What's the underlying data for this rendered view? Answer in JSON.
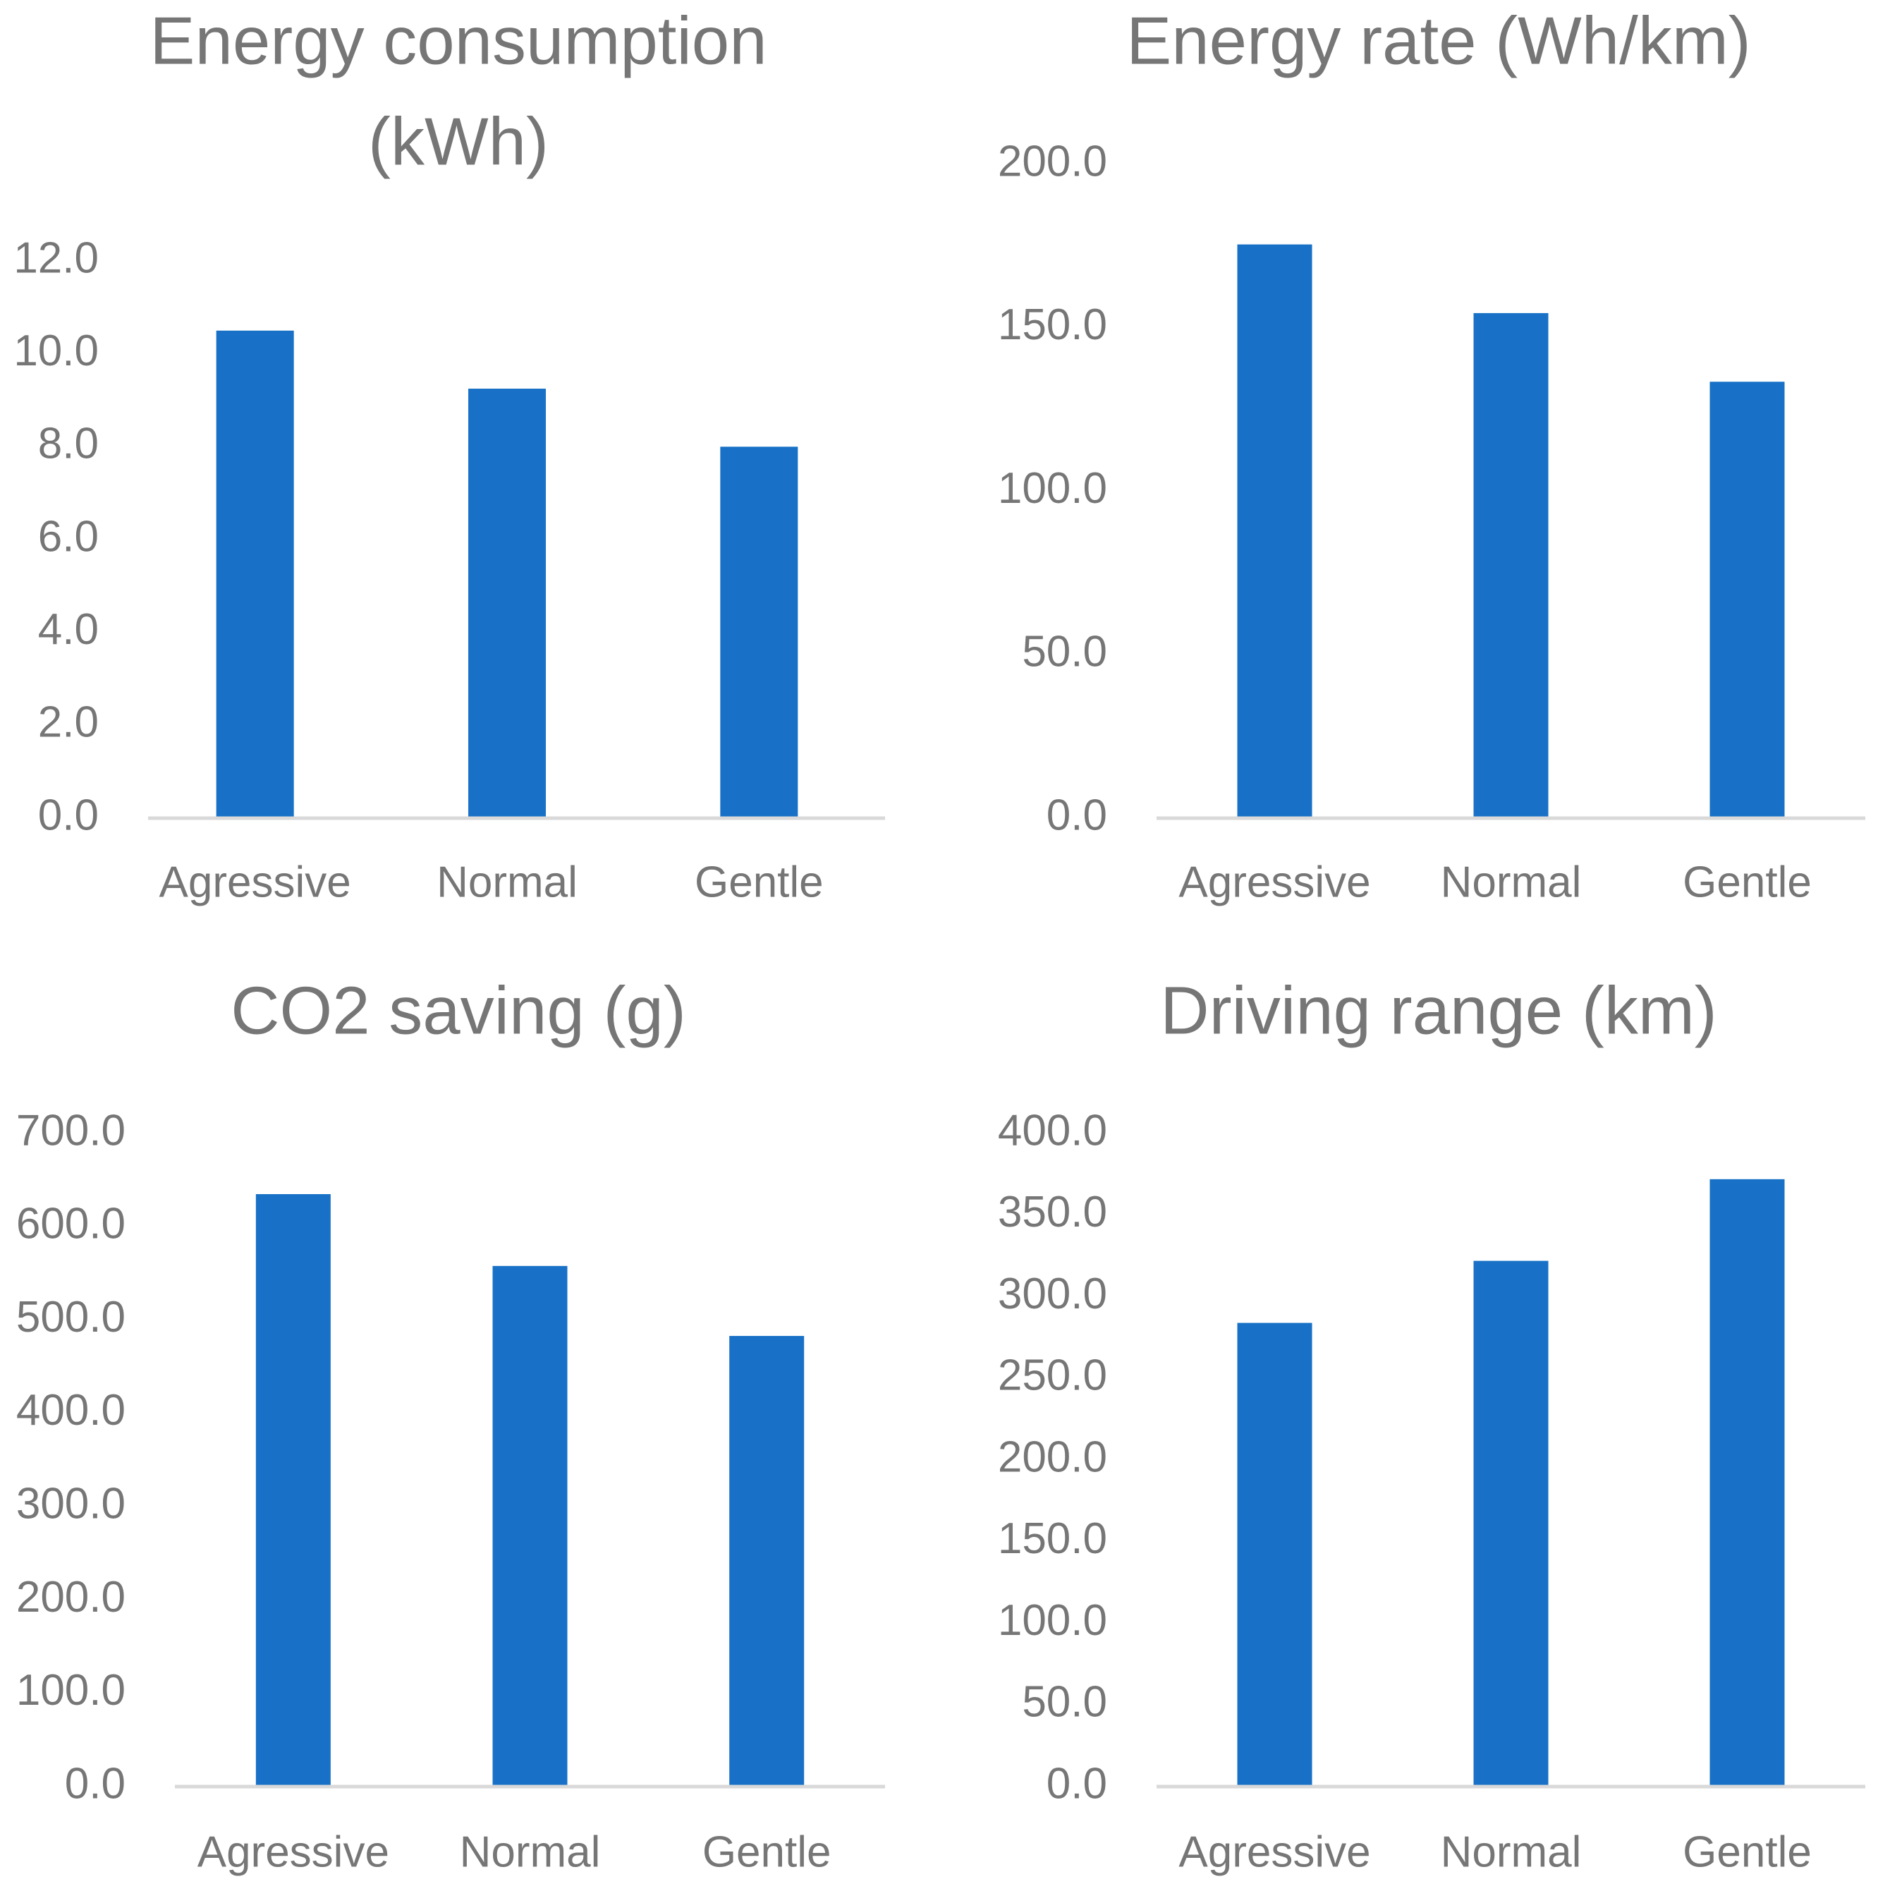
{
  "chart_data": [
    {
      "type": "bar",
      "title_lines": [
        "Energy consumption",
        "(kWh)"
      ],
      "categories": [
        "Agressive",
        "Normal",
        "Gentle"
      ],
      "values": [
        10.5,
        9.25,
        8.0
      ],
      "ylim": [
        0,
        12
      ],
      "yticks": [
        "0.0",
        "2.0",
        "4.0",
        "6.0",
        "8.0",
        "10.0",
        "12.0"
      ],
      "grid": false,
      "legend": "none",
      "bar_color": "#1871c6"
    },
    {
      "type": "bar",
      "title_lines": [
        "Energy rate (Wh/km)"
      ],
      "categories": [
        "Agressive",
        "Normal",
        "Gentle"
      ],
      "values": [
        175.5,
        154.5,
        133.5
      ],
      "ylim": [
        0,
        200
      ],
      "yticks": [
        "0.0",
        "50.0",
        "100.0",
        "150.0",
        "200.0"
      ],
      "grid": false,
      "legend": "none",
      "bar_color": "#1871c6"
    },
    {
      "type": "bar",
      "title_lines": [
        "CO2 saving (g)"
      ],
      "categories": [
        "Agressive",
        "Normal",
        "Gentle"
      ],
      "values": [
        635,
        558,
        483
      ],
      "ylim": [
        0,
        700
      ],
      "yticks": [
        "0.0",
        "100.0",
        "200.0",
        "300.0",
        "400.0",
        "500.0",
        "600.0",
        "700.0"
      ],
      "grid": false,
      "legend": "none",
      "bar_color": "#1871c6"
    },
    {
      "type": "bar",
      "title_lines": [
        "Driving range (km)"
      ],
      "categories": [
        "Agressive",
        "Normal",
        "Gentle"
      ],
      "values": [
        284,
        322,
        372
      ],
      "ylim": [
        0,
        400
      ],
      "yticks": [
        "0.0",
        "50.0",
        "100.0",
        "150.0",
        "200.0",
        "250.0",
        "300.0",
        "350.0",
        "400.0"
      ],
      "grid": false,
      "legend": "none",
      "bar_color": "#1871c6"
    }
  ]
}
